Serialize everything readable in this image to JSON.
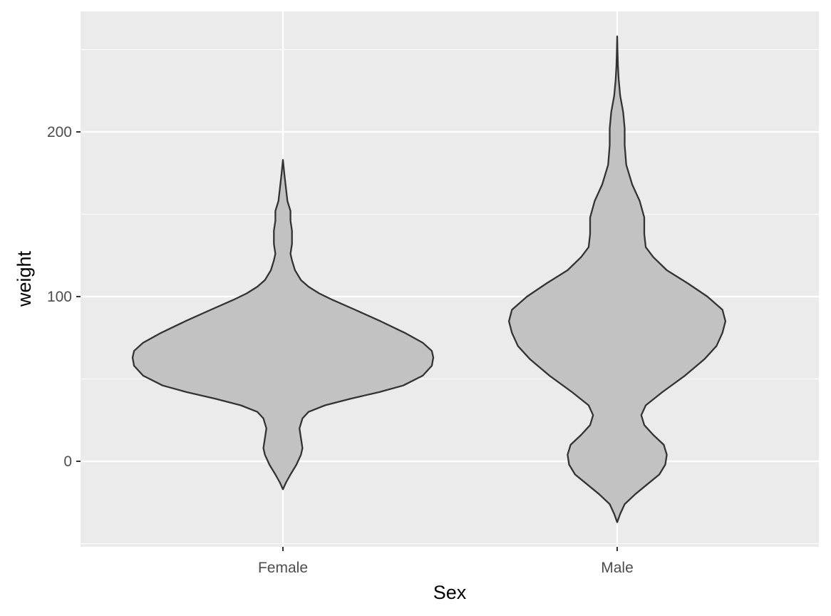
{
  "chart_data": {
    "type": "violin",
    "xlabel": "Sex",
    "ylabel": "weight",
    "categories": [
      "Female",
      "Male"
    ],
    "ylim": [
      -50,
      270
    ],
    "yticks": [
      0,
      100,
      200
    ],
    "grid": true,
    "colors": {
      "panel": "#ebebeb",
      "grid": "#ffffff",
      "fill": "#c2c2c2",
      "outline": "#333333",
      "tick_text": "#4d4d4d"
    },
    "violins": [
      {
        "category": "Female",
        "min": -17,
        "max": 183,
        "profile": [
          [
            -17,
            0.0
          ],
          [
            -13,
            0.02
          ],
          [
            -8,
            0.05
          ],
          [
            -2,
            0.09
          ],
          [
            4,
            0.12
          ],
          [
            8,
            0.13
          ],
          [
            14,
            0.12
          ],
          [
            20,
            0.11
          ],
          [
            26,
            0.13
          ],
          [
            30,
            0.17
          ],
          [
            34,
            0.28
          ],
          [
            38,
            0.45
          ],
          [
            42,
            0.64
          ],
          [
            46,
            0.8
          ],
          [
            52,
            0.93
          ],
          [
            58,
            0.99
          ],
          [
            63,
            1.0
          ],
          [
            67,
            0.99
          ],
          [
            72,
            0.93
          ],
          [
            78,
            0.81
          ],
          [
            85,
            0.65
          ],
          [
            92,
            0.48
          ],
          [
            98,
            0.33
          ],
          [
            102,
            0.24
          ],
          [
            106,
            0.17
          ],
          [
            110,
            0.12
          ],
          [
            116,
            0.08
          ],
          [
            122,
            0.06
          ],
          [
            126,
            0.05
          ],
          [
            132,
            0.06
          ],
          [
            140,
            0.06
          ],
          [
            146,
            0.05
          ],
          [
            152,
            0.05
          ],
          [
            158,
            0.03
          ],
          [
            166,
            0.02
          ],
          [
            174,
            0.01
          ],
          [
            183,
            0.0
          ]
        ]
      },
      {
        "category": "Male",
        "min": -37,
        "max": 258,
        "profile": [
          [
            -37,
            0.0
          ],
          [
            -32,
            0.02
          ],
          [
            -26,
            0.05
          ],
          [
            -20,
            0.12
          ],
          [
            -14,
            0.2
          ],
          [
            -8,
            0.28
          ],
          [
            -2,
            0.32
          ],
          [
            4,
            0.33
          ],
          [
            10,
            0.31
          ],
          [
            16,
            0.24
          ],
          [
            22,
            0.18
          ],
          [
            28,
            0.16
          ],
          [
            34,
            0.19
          ],
          [
            42,
            0.3
          ],
          [
            52,
            0.45
          ],
          [
            62,
            0.58
          ],
          [
            70,
            0.66
          ],
          [
            78,
            0.7
          ],
          [
            85,
            0.72
          ],
          [
            92,
            0.7
          ],
          [
            100,
            0.6
          ],
          [
            108,
            0.47
          ],
          [
            116,
            0.33
          ],
          [
            124,
            0.24
          ],
          [
            130,
            0.19
          ],
          [
            138,
            0.18
          ],
          [
            148,
            0.18
          ],
          [
            158,
            0.15
          ],
          [
            168,
            0.1
          ],
          [
            180,
            0.06
          ],
          [
            192,
            0.05
          ],
          [
            202,
            0.05
          ],
          [
            212,
            0.04
          ],
          [
            222,
            0.02
          ],
          [
            232,
            0.01
          ],
          [
            240,
            0.005
          ],
          [
            250,
            0.002
          ],
          [
            258,
            0.0
          ]
        ]
      }
    ]
  }
}
